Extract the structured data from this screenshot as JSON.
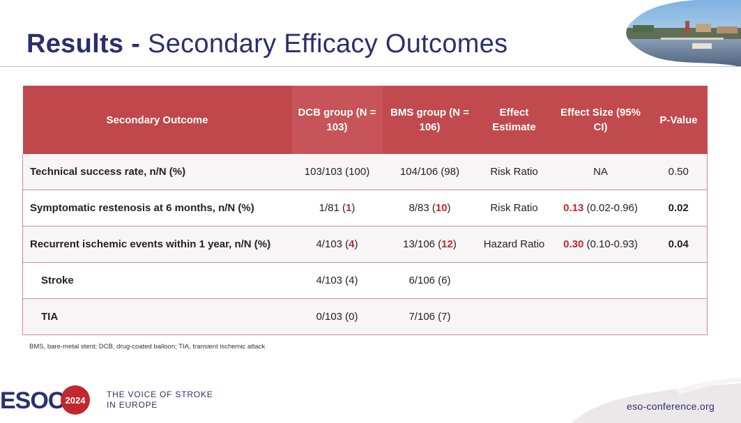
{
  "header": {
    "title_bold": "Results -",
    "title_rest": "Secondary Efficacy Outcomes"
  },
  "table": {
    "headers": {
      "outcome": "Secondary Outcome",
      "dcb_line1": "DCB group",
      "dcb_line2": "(N = 103)",
      "bms_line1": "BMS group",
      "bms_line2": "(N = 106)",
      "effect_line1": "Effect",
      "effect_line2": "Estimate",
      "size_line1": "Effect Size",
      "size_line2": "(95% CI)",
      "pvalue": "P-Value"
    },
    "rows": [
      {
        "outcome": "Technical success rate, n/N (%)",
        "dcb_main": "103/103 (100)",
        "dcb_pre": "",
        "dcb_hl": "",
        "dcb_post": "",
        "bms_main": "104/106 (98)",
        "bms_pre": "",
        "bms_hl": "",
        "bms_post": "",
        "effect": "Risk Ratio",
        "size_hl": "",
        "size_rest": "NA",
        "pvalue": "0.50",
        "pvalue_highlight": false
      },
      {
        "outcome": "Symptomatic restenosis at 6 months, n/N (%)",
        "dcb_pre": "1/81 (",
        "dcb_hl": "1",
        "dcb_post": ")",
        "bms_pre": "8/83 (",
        "bms_hl": "10",
        "bms_post": ")",
        "effect": "Risk Ratio",
        "size_hl": "0.13",
        "size_rest": " (0.02-0.96)",
        "pvalue": "0.02",
        "pvalue_highlight": true
      },
      {
        "outcome": "Recurrent ischemic events within 1 year, n/N (%)",
        "dcb_pre": "4/103 (",
        "dcb_hl": "4",
        "dcb_post": ")",
        "bms_pre": "13/106 (",
        "bms_hl": "12",
        "bms_post": ")",
        "effect": "Hazard Ratio",
        "size_hl": "0.30",
        "size_rest": " (0.10-0.93)",
        "pvalue": "0.04",
        "pvalue_highlight": true
      },
      {
        "outcome": "Stroke",
        "dcb_main": "4/103 (4)",
        "bms_main": "6/106 (6)",
        "effect": "",
        "size_hl": "",
        "size_rest": "",
        "pvalue": ""
      },
      {
        "outcome": "TIA",
        "dcb_main": "0/103 (0)",
        "bms_main": "7/106 (7)",
        "effect": "",
        "size_hl": "",
        "size_rest": "",
        "pvalue": ""
      }
    ]
  },
  "footnote": "BMS, bare-metal stent; DCB, drug-coated balloon; TIA, transient ischemic attack",
  "footer": {
    "logo_text": "ESOC",
    "logo_year": "2024",
    "tagline_line1": "THE VOICE OF STROKE",
    "tagline_line2": "IN EUROPE",
    "url": "eso-conference.org"
  },
  "colors": {
    "header_red": "#c14a4e",
    "highlight_red": "#c1272d",
    "navy": "#2b2f6d"
  }
}
